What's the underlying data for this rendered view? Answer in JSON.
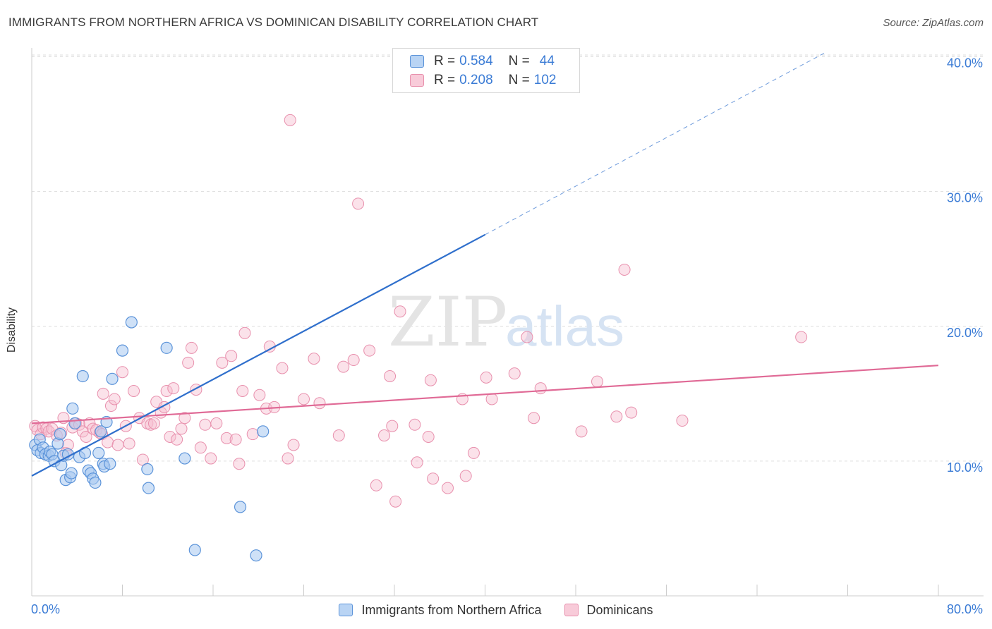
{
  "header": {
    "title": "IMMIGRANTS FROM NORTHERN AFRICA VS DOMINICAN DISABILITY CORRELATION CHART",
    "source": "Source: ZipAtlas.com"
  },
  "watermark": {
    "zip": "ZIP",
    "atlas": "atlas"
  },
  "legend_top": {
    "rows": [
      {
        "r_label": "R = ",
        "r_value": "0.584",
        "n_label": "N = ",
        "n_value": "44"
      },
      {
        "r_label": "R = ",
        "r_value": "0.208",
        "n_label": "N = ",
        "n_value": "102"
      }
    ]
  },
  "legend_bottom": {
    "items": [
      {
        "label": "Immigrants from Northern Africa"
      },
      {
        "label": "Dominicans"
      }
    ]
  },
  "colors": {
    "blue_fill": "#a8c8f0",
    "blue_stroke": "#5b93d9",
    "blue_line": "#2f6fcc",
    "pink_fill": "#f6bfd0",
    "pink_stroke": "#e890ad",
    "pink_line": "#e06a96",
    "axis_label": "#3a7bd5",
    "grid": "#dddddd"
  },
  "chart_data": {
    "type": "scatter",
    "title": "IMMIGRANTS FROM NORTHERN AFRICA VS DOMINICAN DISABILITY CORRELATION CHART",
    "xlabel": "",
    "ylabel": "Disability",
    "xlim": [
      0,
      80
    ],
    "ylim": [
      0,
      42
    ],
    "x_tick_labels": [
      "0.0%",
      "80.0%"
    ],
    "y_ticks": [
      10,
      20,
      30,
      40
    ],
    "y_tick_labels": [
      "10.0%",
      "20.0%",
      "30.0%",
      "40.0%"
    ],
    "grid": "horizontal dashed",
    "legend_position": "top-center",
    "series": [
      {
        "name": "Immigrants from Northern Africa",
        "r": 0.584,
        "n": 44,
        "trend": {
          "x0": 0,
          "y0": 8.9,
          "x1": 40,
          "y1": 26.8,
          "dashed_to_x": 70,
          "dashed_to_y": 40.3
        },
        "points": [
          [
            0.3,
            11.2
          ],
          [
            0.5,
            10.8
          ],
          [
            0.7,
            11.6
          ],
          [
            0.8,
            10.6
          ],
          [
            1.0,
            11.0
          ],
          [
            1.2,
            10.5
          ],
          [
            1.5,
            10.4
          ],
          [
            1.6,
            10.7
          ],
          [
            1.8,
            10.5
          ],
          [
            2.0,
            10.0
          ],
          [
            2.3,
            11.3
          ],
          [
            2.5,
            12.0
          ],
          [
            2.6,
            9.7
          ],
          [
            2.8,
            10.4
          ],
          [
            3.0,
            8.6
          ],
          [
            3.2,
            10.5
          ],
          [
            3.4,
            8.8
          ],
          [
            3.5,
            9.1
          ],
          [
            3.6,
            13.9
          ],
          [
            3.8,
            12.8
          ],
          [
            4.2,
            10.3
          ],
          [
            4.5,
            16.3
          ],
          [
            4.7,
            10.6
          ],
          [
            5.0,
            9.3
          ],
          [
            5.2,
            9.1
          ],
          [
            5.4,
            8.7
          ],
          [
            5.6,
            8.4
          ],
          [
            5.9,
            10.6
          ],
          [
            6.1,
            12.2
          ],
          [
            6.3,
            9.8
          ],
          [
            6.4,
            9.6
          ],
          [
            6.6,
            12.9
          ],
          [
            6.9,
            9.8
          ],
          [
            7.1,
            16.1
          ],
          [
            8.0,
            18.2
          ],
          [
            8.8,
            20.3
          ],
          [
            10.2,
            9.4
          ],
          [
            10.3,
            8.0
          ],
          [
            11.9,
            18.4
          ],
          [
            13.5,
            10.2
          ],
          [
            14.4,
            3.4
          ],
          [
            18.4,
            6.6
          ],
          [
            20.4,
            12.2
          ],
          [
            19.8,
            3.0
          ]
        ]
      },
      {
        "name": "Dominicans",
        "r": 0.208,
        "n": 102,
        "trend": {
          "x0": 0,
          "y0": 12.8,
          "x1": 80,
          "y1": 17.1
        },
        "points": [
          [
            0.3,
            12.6
          ],
          [
            0.5,
            12.3
          ],
          [
            0.8,
            12.0
          ],
          [
            1.0,
            12.5
          ],
          [
            1.3,
            12.4
          ],
          [
            1.5,
            12.2
          ],
          [
            1.8,
            12.4
          ],
          [
            2.2,
            11.9
          ],
          [
            2.6,
            12.1
          ],
          [
            2.8,
            13.2
          ],
          [
            3.0,
            10.6
          ],
          [
            3.2,
            11.2
          ],
          [
            3.6,
            12.5
          ],
          [
            3.9,
            12.8
          ],
          [
            4.2,
            12.7
          ],
          [
            4.5,
            12.2
          ],
          [
            4.8,
            11.8
          ],
          [
            5.1,
            12.8
          ],
          [
            5.4,
            12.4
          ],
          [
            5.7,
            12.3
          ],
          [
            6.0,
            12.1
          ],
          [
            6.2,
            12.0
          ],
          [
            6.3,
            15.0
          ],
          [
            6.7,
            11.4
          ],
          [
            7.0,
            14.1
          ],
          [
            7.3,
            14.6
          ],
          [
            7.6,
            11.2
          ],
          [
            8.0,
            16.6
          ],
          [
            8.3,
            12.6
          ],
          [
            8.6,
            11.3
          ],
          [
            9.0,
            15.2
          ],
          [
            9.5,
            13.2
          ],
          [
            9.8,
            10.1
          ],
          [
            10.2,
            12.8
          ],
          [
            10.5,
            12.7
          ],
          [
            10.8,
            12.8
          ],
          [
            11.0,
            14.4
          ],
          [
            11.4,
            13.6
          ],
          [
            11.7,
            14.0
          ],
          [
            11.9,
            15.2
          ],
          [
            12.2,
            11.8
          ],
          [
            12.5,
            15.4
          ],
          [
            12.8,
            11.6
          ],
          [
            13.2,
            12.4
          ],
          [
            13.5,
            13.2
          ],
          [
            13.8,
            17.3
          ],
          [
            14.1,
            18.4
          ],
          [
            14.5,
            15.3
          ],
          [
            14.9,
            11.0
          ],
          [
            15.3,
            12.7
          ],
          [
            15.8,
            10.2
          ],
          [
            16.3,
            12.8
          ],
          [
            16.8,
            17.3
          ],
          [
            17.2,
            11.7
          ],
          [
            17.6,
            17.8
          ],
          [
            18.0,
            11.6
          ],
          [
            18.3,
            9.8
          ],
          [
            18.6,
            15.2
          ],
          [
            18.8,
            19.5
          ],
          [
            19.5,
            12.0
          ],
          [
            20.1,
            14.9
          ],
          [
            20.7,
            13.9
          ],
          [
            21.0,
            18.5
          ],
          [
            21.4,
            14.0
          ],
          [
            22.1,
            16.9
          ],
          [
            22.6,
            10.2
          ],
          [
            23.1,
            11.2
          ],
          [
            24.0,
            14.6
          ],
          [
            24.9,
            17.6
          ],
          [
            25.4,
            14.3
          ],
          [
            27.1,
            11.9
          ],
          [
            27.5,
            17.0
          ],
          [
            28.4,
            17.5
          ],
          [
            28.8,
            29.1
          ],
          [
            29.8,
            18.2
          ],
          [
            30.4,
            8.2
          ],
          [
            31.1,
            11.9
          ],
          [
            31.6,
            16.3
          ],
          [
            31.8,
            12.6
          ],
          [
            32.1,
            7.0
          ],
          [
            32.5,
            21.1
          ],
          [
            33.8,
            12.7
          ],
          [
            34.0,
            9.9
          ],
          [
            35.0,
            11.8
          ],
          [
            35.2,
            16.0
          ],
          [
            35.4,
            8.7
          ],
          [
            36.7,
            8.0
          ],
          [
            38.0,
            14.6
          ],
          [
            38.3,
            8.9
          ],
          [
            39.0,
            10.6
          ],
          [
            40.1,
            16.2
          ],
          [
            40.6,
            14.6
          ],
          [
            42.6,
            16.5
          ],
          [
            43.7,
            19.2
          ],
          [
            44.3,
            13.2
          ],
          [
            44.9,
            15.4
          ],
          [
            48.5,
            12.2
          ],
          [
            49.9,
            15.9
          ],
          [
            51.6,
            13.3
          ],
          [
            52.3,
            24.2
          ],
          [
            52.9,
            13.6
          ],
          [
            57.4,
            13.0
          ],
          [
            67.9,
            19.2
          ],
          [
            22.8,
            35.3
          ]
        ]
      }
    ]
  }
}
